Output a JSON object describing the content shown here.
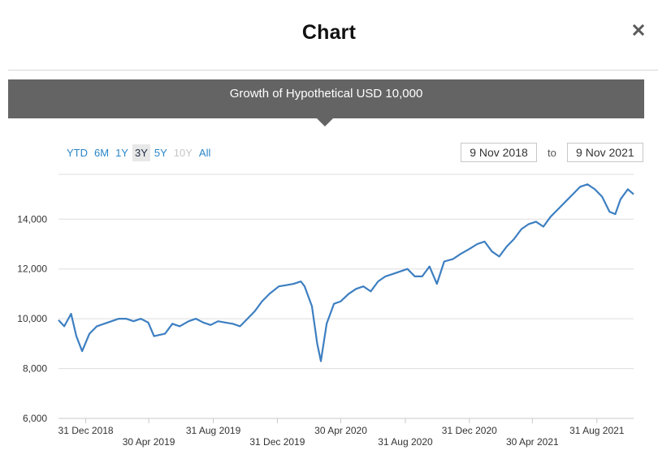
{
  "modal": {
    "title": "Chart",
    "close_icon": "close-icon"
  },
  "header": {
    "title": "Growth of Hypothetical USD 10,000"
  },
  "range_buttons": [
    {
      "label": "YTD",
      "state": "normal"
    },
    {
      "label": "6M",
      "state": "normal"
    },
    {
      "label": "1Y",
      "state": "normal"
    },
    {
      "label": "3Y",
      "state": "active"
    },
    {
      "label": "5Y",
      "state": "normal"
    },
    {
      "label": "10Y",
      "state": "disabled"
    },
    {
      "label": "All",
      "state": "normal"
    }
  ],
  "date_range": {
    "from": "9 Nov 2018",
    "to_label": "to",
    "to": "9 Nov 2021"
  },
  "colors": {
    "line": "#3d7fc1",
    "header_bg": "#646464",
    "grid": "#dddddd",
    "link": "#2a86c8"
  },
  "chart_data": {
    "type": "line",
    "title": "Growth of Hypothetical USD 10,000",
    "xlabel": "",
    "ylabel": "",
    "ylim": [
      6000,
      15800
    ],
    "xlim": [
      "2018-11-09",
      "2021-11-09"
    ],
    "y_ticks": [
      6000,
      8000,
      10000,
      12000,
      14000
    ],
    "y_tick_labels": [
      "6,000",
      "8,000",
      "10,000",
      "12,000",
      "14,000"
    ],
    "x_ticks": [
      {
        "date": "2018-12-31",
        "label": "31 Dec 2018",
        "row": 0
      },
      {
        "date": "2019-04-30",
        "label": "30 Apr 2019",
        "row": 1
      },
      {
        "date": "2019-08-31",
        "label": "31 Aug 2019",
        "row": 0
      },
      {
        "date": "2019-12-31",
        "label": "31 Dec 2019",
        "row": 1
      },
      {
        "date": "2020-04-30",
        "label": "30 Apr 2020",
        "row": 0
      },
      {
        "date": "2020-08-31",
        "label": "31 Aug 2020",
        "row": 1
      },
      {
        "date": "2020-12-31",
        "label": "31 Dec 2020",
        "row": 0
      },
      {
        "date": "2021-04-30",
        "label": "30 Apr 2021",
        "row": 1
      },
      {
        "date": "2021-08-31",
        "label": "31 Aug 2021",
        "row": 0
      }
    ],
    "grid": true,
    "legend": "none",
    "series": [
      {
        "name": "",
        "x": [
          "2018-11-09",
          "2018-11-20",
          "2018-12-03",
          "2018-12-13",
          "2018-12-24",
          "2019-01-07",
          "2019-01-21",
          "2019-02-04",
          "2019-02-18",
          "2019-03-04",
          "2019-03-18",
          "2019-04-01",
          "2019-04-15",
          "2019-04-29",
          "2019-05-10",
          "2019-05-31",
          "2019-06-14",
          "2019-06-28",
          "2019-07-15",
          "2019-07-29",
          "2019-08-12",
          "2019-08-26",
          "2019-09-09",
          "2019-09-23",
          "2019-10-07",
          "2019-10-21",
          "2019-11-04",
          "2019-11-18",
          "2019-12-02",
          "2019-12-16",
          "2020-01-03",
          "2020-01-17",
          "2020-01-31",
          "2020-02-14",
          "2020-02-21",
          "2020-03-06",
          "2020-03-16",
          "2020-03-23",
          "2020-04-03",
          "2020-04-17",
          "2020-04-30",
          "2020-05-15",
          "2020-05-29",
          "2020-06-12",
          "2020-06-26",
          "2020-07-10",
          "2020-07-24",
          "2020-08-07",
          "2020-08-21",
          "2020-09-04",
          "2020-09-18",
          "2020-10-02",
          "2020-10-16",
          "2020-10-30",
          "2020-11-13",
          "2020-11-30",
          "2020-12-14",
          "2020-12-31",
          "2021-01-15",
          "2021-01-29",
          "2021-02-12",
          "2021-02-26",
          "2021-03-12",
          "2021-03-26",
          "2021-04-09",
          "2021-04-23",
          "2021-05-07",
          "2021-05-21",
          "2021-06-04",
          "2021-06-18",
          "2021-07-02",
          "2021-07-16",
          "2021-07-30",
          "2021-08-13",
          "2021-08-27",
          "2021-09-10",
          "2021-09-24",
          "2021-10-05",
          "2021-10-15",
          "2021-10-29",
          "2021-11-09"
        ],
        "values": [
          9950,
          9700,
          10200,
          9300,
          8700,
          9400,
          9700,
          9800,
          9900,
          10000,
          10000,
          9900,
          10000,
          9850,
          9300,
          9400,
          9800,
          9700,
          9900,
          10000,
          9850,
          9750,
          9900,
          9850,
          9800,
          9700,
          10000,
          10300,
          10700,
          11000,
          11300,
          11350,
          11400,
          11500,
          11300,
          10500,
          9000,
          8300,
          9800,
          10600,
          10700,
          11000,
          11200,
          11300,
          11100,
          11500,
          11700,
          11800,
          11900,
          12000,
          11700,
          11700,
          12100,
          11400,
          12300,
          12400,
          12600,
          12800,
          13000,
          13100,
          12700,
          12500,
          12900,
          13200,
          13600,
          13800,
          13900,
          13700,
          14100,
          14400,
          14700,
          15000,
          15300,
          15400,
          15200,
          14900,
          14300,
          14200,
          14800,
          15200,
          15000
        ]
      }
    ]
  }
}
